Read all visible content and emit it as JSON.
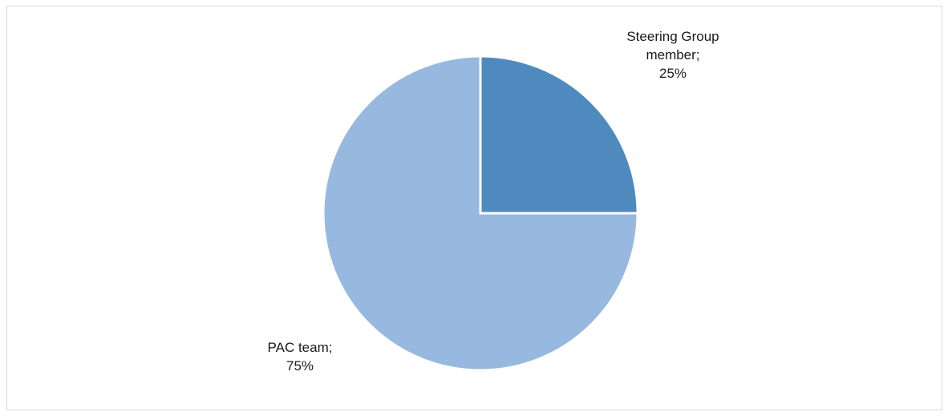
{
  "chart_data": {
    "type": "pie",
    "title": "",
    "slices": [
      {
        "label": "Steering Group member",
        "label_lines": [
          "Steering Group",
          "member;"
        ],
        "value_text": "25%",
        "value": 25,
        "color": "#4f8abe"
      },
      {
        "label": "PAC team",
        "label_lines": [
          "PAC team;"
        ],
        "value_text": "75%",
        "value": 75,
        "color": "#98b9df"
      }
    ],
    "start_angle": "12 o'clock",
    "direction": "clockwise",
    "legend": "none"
  }
}
